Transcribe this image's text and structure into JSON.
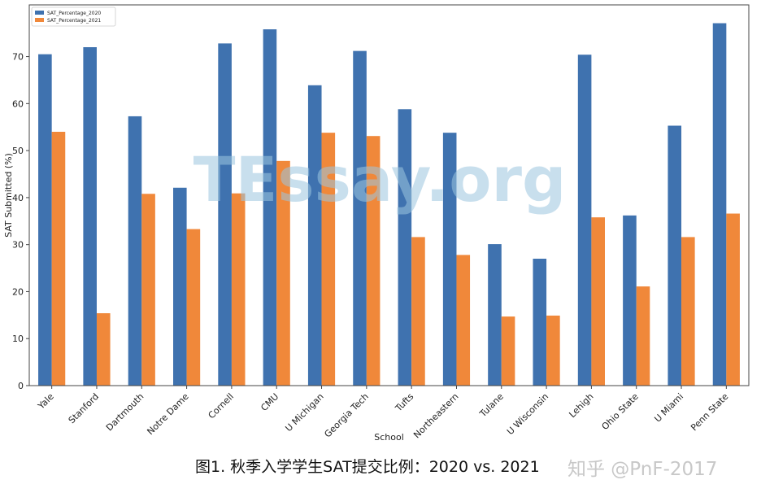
{
  "chart_data": {
    "type": "bar",
    "xlabel": "School",
    "ylabel": "SAT Submitted (%)",
    "ylim": [
      0,
      81
    ],
    "yticks": [
      0,
      10,
      20,
      30,
      40,
      50,
      60,
      70
    ],
    "legend_position": "top-left",
    "categories": [
      "Yale",
      "Stanford",
      "Dartmouth",
      "Notre Dame",
      "Cornell",
      "CMU",
      "U Michigan",
      "Georgia Tech",
      "Tufts",
      "Northeastern",
      "Tulane",
      "U Wisconsin",
      "Lehigh",
      "Ohio State",
      "U Miami",
      "Penn State"
    ],
    "series": [
      {
        "name": "SAT_Percentage_2020",
        "color": "#3f72af",
        "values": [
          70.5,
          72.0,
          57.3,
          42.1,
          72.8,
          75.8,
          63.9,
          71.2,
          58.8,
          53.8,
          30.1,
          27.0,
          70.4,
          36.2,
          55.3,
          77.1
        ]
      },
      {
        "name": "SAT_Percentage_2021",
        "color": "#f0883a",
        "values": [
          54.0,
          15.4,
          40.8,
          33.3,
          40.9,
          47.8,
          53.8,
          53.1,
          31.6,
          27.8,
          14.7,
          14.9,
          35.8,
          21.1,
          31.6,
          36.6
        ]
      }
    ]
  },
  "watermark": "TEssay.org",
  "caption": "图1. 秋季入学学生SAT提交比例：2020 vs. 2021",
  "brand": "知乎 @PnF-2017"
}
